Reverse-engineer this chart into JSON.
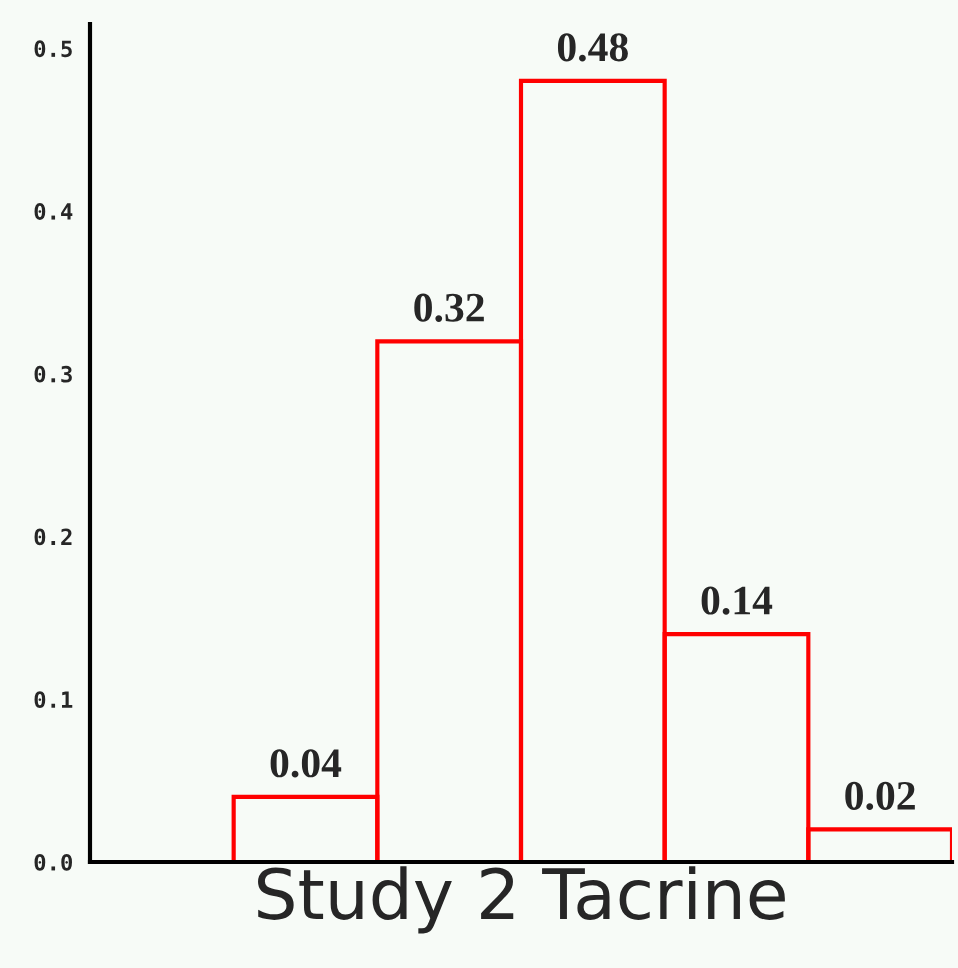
{
  "chart_data": {
    "type": "bar",
    "xlabel": "Study 2 Tacrine",
    "categories": [
      null,
      null,
      null,
      null,
      null,
      null
    ],
    "values": [
      null,
      0.04,
      0.32,
      0.48,
      0.14,
      0.02
    ],
    "color": "#ff0000",
    "data_labels": true,
    "ylim": [
      0,
      0.515
    ],
    "yticks": [
      {
        "value": 0,
        "label": "0.0"
      },
      0.1,
      0.2,
      0.3,
      0.4,
      0.5
    ],
    "grid": false,
    "legend": false
  }
}
